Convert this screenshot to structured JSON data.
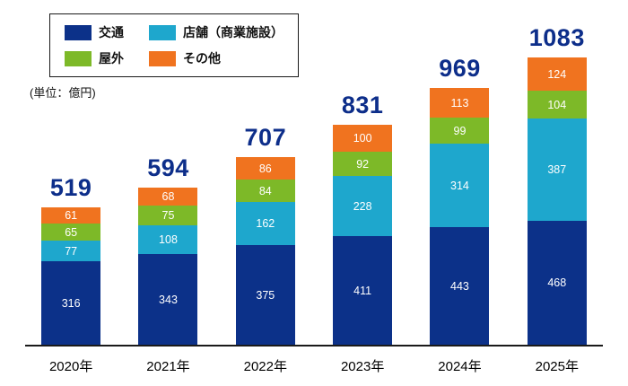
{
  "chart_data": {
    "type": "bar",
    "stacked": true,
    "title": "",
    "unit_label": "(単位：億円)",
    "legend_position": "top-left",
    "grid": false,
    "categories": [
      "2020年",
      "2021年",
      "2022年",
      "2023年",
      "2024年",
      "2025年"
    ],
    "series": [
      {
        "key": "traffic",
        "name": "交通",
        "color": "#0c3189",
        "values": [
          316,
          343,
          375,
          411,
          443,
          468
        ]
      },
      {
        "key": "store",
        "name": "店舗（商業施設）",
        "color": "#1ea7cd",
        "values": [
          77,
          108,
          162,
          228,
          314,
          387
        ]
      },
      {
        "key": "outdoor",
        "name": "屋外",
        "color": "#7db928",
        "values": [
          65,
          75,
          84,
          92,
          99,
          104
        ]
      },
      {
        "key": "other",
        "name": "その他",
        "color": "#f0731f",
        "values": [
          61,
          68,
          86,
          100,
          113,
          124
        ]
      }
    ],
    "totals": [
      519,
      594,
      707,
      831,
      969,
      1083
    ],
    "total_label_color": "#0d2e8a",
    "ylim": [
      0,
      1100
    ]
  }
}
